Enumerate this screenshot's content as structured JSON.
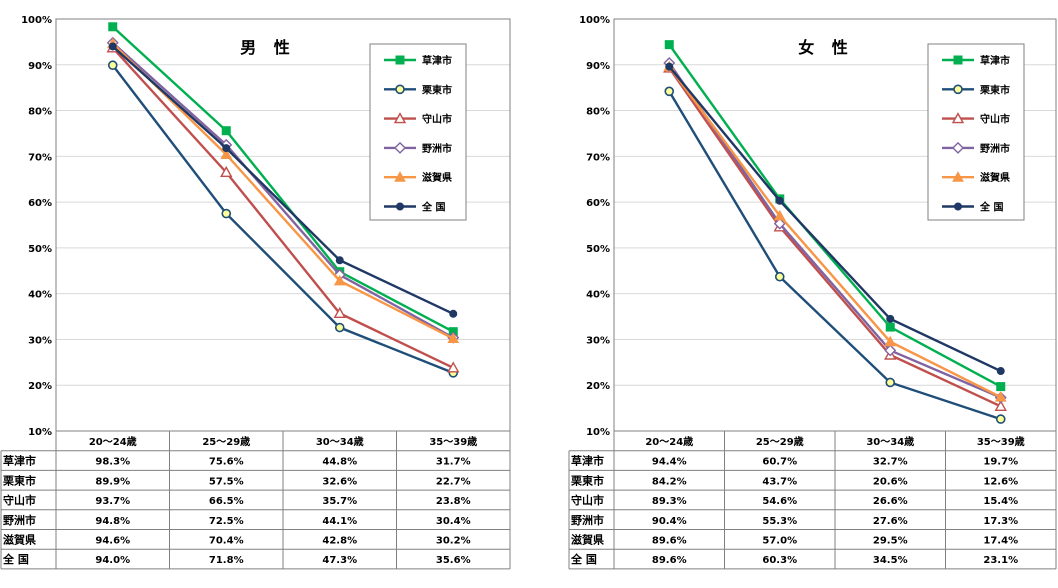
{
  "chart_data": [
    {
      "type": "line",
      "title": "男 性",
      "categories": [
        "20～24歳",
        "25～29歳",
        "30～34歳",
        "35～39歳"
      ],
      "ylim": [
        0.1,
        1.0
      ],
      "yticks": [
        "10%",
        "20%",
        "30%",
        "40%",
        "50%",
        "60%",
        "70%",
        "80%",
        "90%",
        "100%"
      ],
      "grid": true,
      "legend_position": "top-right",
      "series": [
        {
          "name": "草津市",
          "color": "#00b050",
          "marker": "square",
          "values": [
            0.983,
            0.756,
            0.448,
            0.317
          ],
          "labels": [
            "98.3%",
            "75.6%",
            "44.8%",
            "31.7%"
          ]
        },
        {
          "name": "栗東市",
          "color": "#1f4e79",
          "marker": "circle-open",
          "values": [
            0.899,
            0.575,
            0.326,
            0.227
          ],
          "labels": [
            "89.9%",
            "57.5%",
            "32.6%",
            "22.7%"
          ]
        },
        {
          "name": "守山市",
          "color": "#c0504d",
          "marker": "triangle-open",
          "values": [
            0.937,
            0.665,
            0.357,
            0.238
          ],
          "labels": [
            "93.7%",
            "66.5%",
            "35.7%",
            "23.8%"
          ]
        },
        {
          "name": "野洲市",
          "color": "#8064a2",
          "marker": "diamond-open",
          "values": [
            0.948,
            0.725,
            0.441,
            0.304
          ],
          "labels": [
            "94.8%",
            "72.5%",
            "44.1%",
            "30.4%"
          ]
        },
        {
          "name": "滋賀県",
          "color": "#f79646",
          "marker": "triangle",
          "values": [
            0.946,
            0.704,
            0.428,
            0.302
          ],
          "labels": [
            "94.6%",
            "70.4%",
            "42.8%",
            "30.2%"
          ]
        },
        {
          "name": "全 国",
          "color": "#1f3864",
          "marker": "circle",
          "values": [
            0.94,
            0.718,
            0.473,
            0.356
          ],
          "labels": [
            "94.0%",
            "71.8%",
            "47.3%",
            "35.6%"
          ]
        }
      ]
    },
    {
      "type": "line",
      "title": "女 性",
      "categories": [
        "20～24歳",
        "25～29歳",
        "30～34歳",
        "35～39歳"
      ],
      "ylim": [
        0.1,
        1.0
      ],
      "yticks": [
        "10%",
        "20%",
        "30%",
        "40%",
        "50%",
        "60%",
        "70%",
        "80%",
        "90%",
        "100%"
      ],
      "grid": true,
      "legend_position": "top-right",
      "series": [
        {
          "name": "草津市",
          "color": "#00b050",
          "marker": "square",
          "values": [
            0.944,
            0.607,
            0.327,
            0.197
          ],
          "labels": [
            "94.4%",
            "60.7%",
            "32.7%",
            "19.7%"
          ]
        },
        {
          "name": "栗東市",
          "color": "#1f4e79",
          "marker": "circle-open",
          "values": [
            0.842,
            0.437,
            0.206,
            0.126
          ],
          "labels": [
            "84.2%",
            "43.7%",
            "20.6%",
            "12.6%"
          ]
        },
        {
          "name": "守山市",
          "color": "#c0504d",
          "marker": "triangle-open",
          "values": [
            0.893,
            0.546,
            0.266,
            0.154
          ],
          "labels": [
            "89.3%",
            "54.6%",
            "26.6%",
            "15.4%"
          ]
        },
        {
          "name": "野洲市",
          "color": "#8064a2",
          "marker": "diamond-open",
          "values": [
            0.904,
            0.553,
            0.276,
            0.173
          ],
          "labels": [
            "90.4%",
            "55.3%",
            "27.6%",
            "17.3%"
          ]
        },
        {
          "name": "滋賀県",
          "color": "#f79646",
          "marker": "triangle",
          "values": [
            0.896,
            0.57,
            0.295,
            0.174
          ],
          "labels": [
            "89.6%",
            "57.0%",
            "29.5%",
            "17.4%"
          ]
        },
        {
          "name": "全 国",
          "color": "#1f3864",
          "marker": "circle",
          "values": [
            0.896,
            0.603,
            0.345,
            0.231
          ],
          "labels": [
            "89.6%",
            "60.3%",
            "34.5%",
            "23.1%"
          ]
        }
      ]
    }
  ]
}
